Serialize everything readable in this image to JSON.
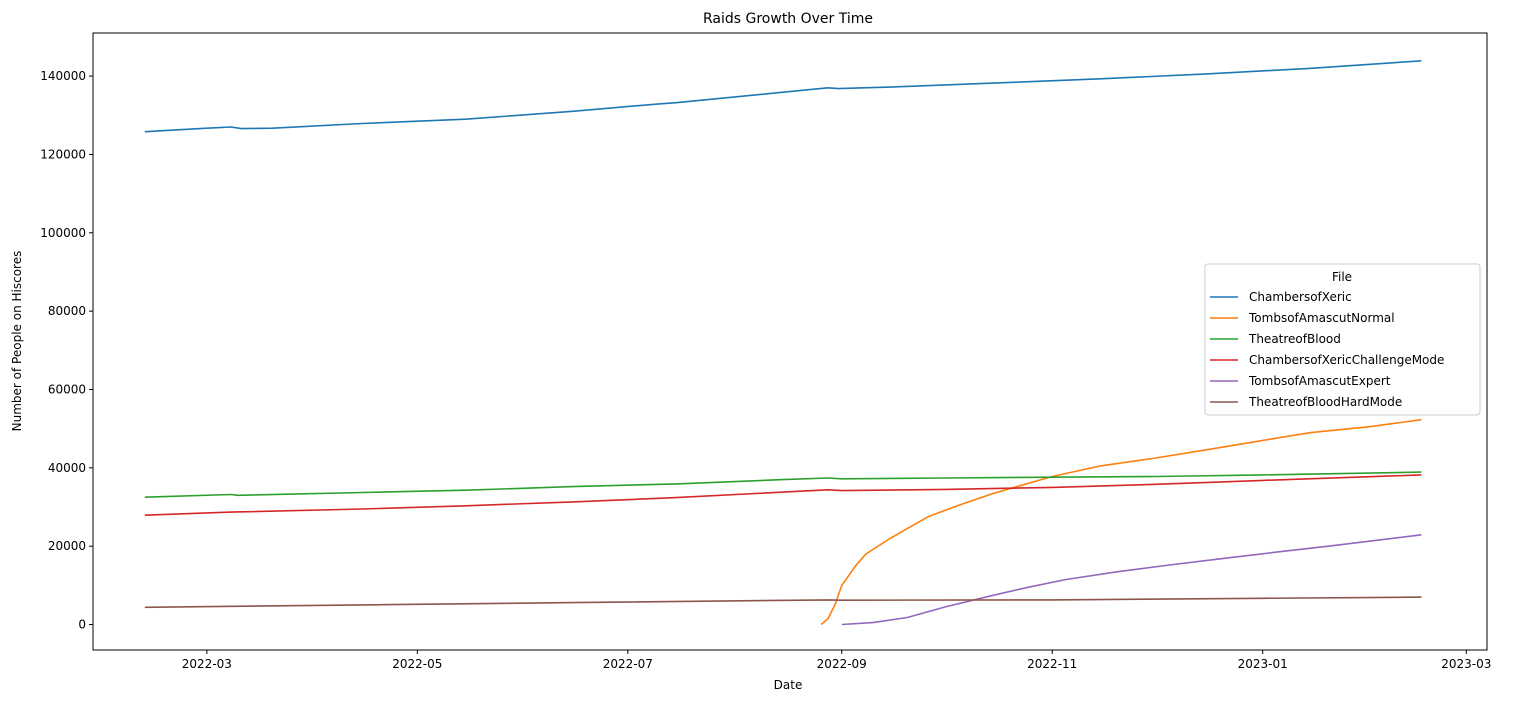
{
  "chart_data": {
    "type": "line",
    "title": "Raids Growth Over Time",
    "xlabel": "Date",
    "ylabel": "Number of People on Hiscores",
    "x_ticks": [
      "2022-03",
      "2022-05",
      "2022-07",
      "2022-09",
      "2022-11",
      "2023-01",
      "2023-03"
    ],
    "y_ticks": [
      "0",
      "20000",
      "40000",
      "60000",
      "80000",
      "100000",
      "120000",
      "140000"
    ],
    "xlim": [
      "2022-01-27",
      "2023-03-07"
    ],
    "ylim": [
      -6500,
      151000
    ],
    "grid": false,
    "legend": {
      "title": "File",
      "placement": "center-right"
    },
    "series": [
      {
        "name": "ChambersofXeric",
        "color": "#1f77b4",
        "points": [
          [
            "2022-02-11",
            125800
          ],
          [
            "2022-03-01",
            126700
          ],
          [
            "2022-03-08",
            127000
          ],
          [
            "2022-03-11",
            126600
          ],
          [
            "2022-03-20",
            126700
          ],
          [
            "2022-04-15",
            127900
          ],
          [
            "2022-05-15",
            129000
          ],
          [
            "2022-06-15",
            131000
          ],
          [
            "2022-07-10",
            132900
          ],
          [
            "2022-07-15",
            133200
          ],
          [
            "2022-08-15",
            135900
          ],
          [
            "2022-08-28",
            137000
          ],
          [
            "2022-08-31",
            136800
          ],
          [
            "2022-09-15",
            137200
          ],
          [
            "2022-10-15",
            138200
          ],
          [
            "2022-11-15",
            139300
          ],
          [
            "2022-12-15",
            140500
          ],
          [
            "2023-01-15",
            142000
          ],
          [
            "2023-02-16",
            143900
          ]
        ]
      },
      {
        "name": "TombsofAmascutNormal",
        "color": "#ff7f0e",
        "points": [
          [
            "2022-08-26",
            0
          ],
          [
            "2022-08-28",
            1500
          ],
          [
            "2022-08-30",
            5000
          ],
          [
            "2022-09-01",
            10000
          ],
          [
            "2022-09-05",
            15000
          ],
          [
            "2022-09-08",
            18000
          ],
          [
            "2022-09-15",
            22000
          ],
          [
            "2022-09-20",
            24500
          ],
          [
            "2022-09-26",
            27500
          ],
          [
            "2022-10-05",
            30500
          ],
          [
            "2022-10-15",
            33500
          ],
          [
            "2022-11-01",
            37800
          ],
          [
            "2022-11-15",
            40500
          ],
          [
            "2022-12-01",
            42500
          ],
          [
            "2022-12-15",
            44500
          ],
          [
            "2023-01-01",
            47000
          ],
          [
            "2023-01-15",
            49000
          ],
          [
            "2023-02-01",
            50500
          ],
          [
            "2023-02-16",
            52300
          ]
        ]
      },
      {
        "name": "TheatreofBlood",
        "color": "#2ca02c",
        "points": [
          [
            "2022-02-11",
            32500
          ],
          [
            "2022-03-08",
            33200
          ],
          [
            "2022-03-10",
            33000
          ],
          [
            "2022-04-15",
            33700
          ],
          [
            "2022-05-15",
            34300
          ],
          [
            "2022-06-15",
            35200
          ],
          [
            "2022-07-15",
            35900
          ],
          [
            "2022-08-15",
            37000
          ],
          [
            "2022-08-28",
            37400
          ],
          [
            "2022-09-01",
            37200
          ],
          [
            "2022-10-01",
            37400
          ],
          [
            "2022-11-01",
            37600
          ],
          [
            "2022-12-01",
            37800
          ],
          [
            "2023-01-01",
            38200
          ],
          [
            "2023-02-16",
            38900
          ]
        ]
      },
      {
        "name": "ChambersofXericChallengeMode",
        "color": "#d62728",
        "points": [
          [
            "2022-02-11",
            27900
          ],
          [
            "2022-03-08",
            28700
          ],
          [
            "2022-04-15",
            29500
          ],
          [
            "2022-05-15",
            30300
          ],
          [
            "2022-06-15",
            31300
          ],
          [
            "2022-07-15",
            32400
          ],
          [
            "2022-08-15",
            33800
          ],
          [
            "2022-08-28",
            34400
          ],
          [
            "2022-09-01",
            34200
          ],
          [
            "2022-10-01",
            34500
          ],
          [
            "2022-11-01",
            35000
          ],
          [
            "2022-12-01",
            35800
          ],
          [
            "2023-01-01",
            36800
          ],
          [
            "2023-02-16",
            38200
          ]
        ]
      },
      {
        "name": "TombsofAmascutExpert",
        "color": "#9467bd",
        "points": [
          [
            "2022-09-01",
            0
          ],
          [
            "2022-09-10",
            500
          ],
          [
            "2022-09-20",
            1800
          ],
          [
            "2022-10-01",
            4500
          ],
          [
            "2022-10-15",
            7500
          ],
          [
            "2022-10-25",
            9500
          ],
          [
            "2022-11-05",
            11500
          ],
          [
            "2022-11-20",
            13500
          ],
          [
            "2022-12-05",
            15200
          ],
          [
            "2022-12-20",
            16800
          ],
          [
            "2023-01-05",
            18500
          ],
          [
            "2023-01-20",
            20000
          ],
          [
            "2023-02-16",
            22900
          ]
        ]
      },
      {
        "name": "TheatreofBloodHardMode",
        "color": "#8c564b",
        "points": [
          [
            "2022-02-11",
            4400
          ],
          [
            "2022-04-15",
            5000
          ],
          [
            "2022-06-15",
            5600
          ],
          [
            "2022-08-28",
            6300
          ],
          [
            "2022-09-01",
            6200
          ],
          [
            "2022-11-01",
            6300
          ],
          [
            "2023-01-01",
            6700
          ],
          [
            "2023-02-16",
            7000
          ]
        ]
      }
    ]
  }
}
